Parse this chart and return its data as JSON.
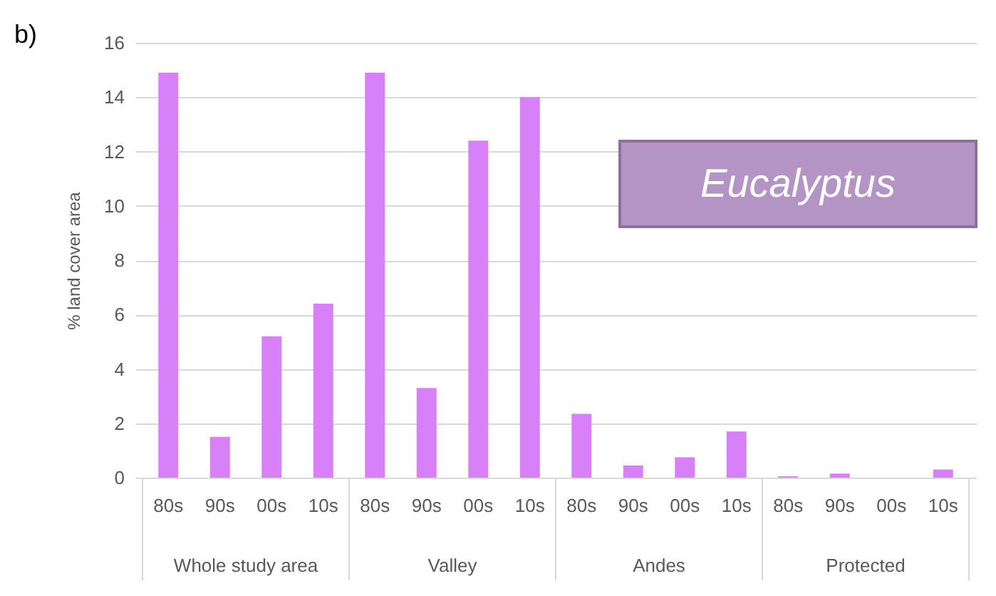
{
  "chart_data": {
    "type": "bar",
    "title": "b)",
    "ylabel": "% land cover area",
    "categories": [
      "80s",
      "90s",
      "00s",
      "10s",
      "80s",
      "90s",
      "00s",
      "10s",
      "80s",
      "90s",
      "00s",
      "10s",
      "80s",
      "90s",
      "00s",
      "10s"
    ],
    "values": [
      14.9,
      1.5,
      5.2,
      6.4,
      14.9,
      3.3,
      12.4,
      14.0,
      2.35,
      0.45,
      0.75,
      1.7,
      0.05,
      0.15,
      0,
      0.3
    ],
    "color": "#d880f8",
    "ylim": [
      0,
      16
    ],
    "yticks": [
      0,
      2,
      4,
      6,
      8,
      10,
      12,
      14,
      16
    ],
    "grid": "y",
    "annotations": [
      "Eucalyptus",
      "Whole study area",
      "Valley",
      "Andes",
      "Protected"
    ]
  }
}
